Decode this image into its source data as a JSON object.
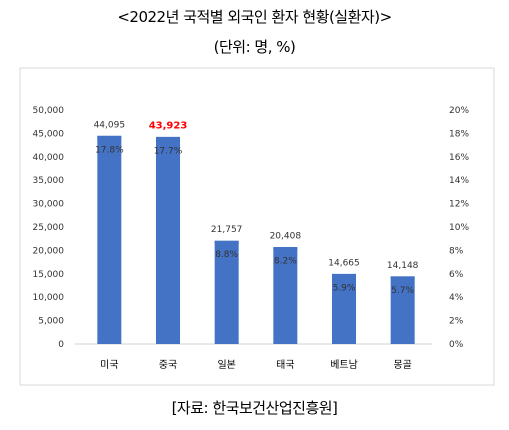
{
  "title": "<2022년 국적별 외국인 환자 현황(실환자)>",
  "unit": "(단위: 명, %)",
  "source": "[자료: 한국보건산업진흥원]",
  "chart_data": {
    "type": "bar",
    "categories": [
      "미국",
      "중국",
      "일본",
      "태국",
      "베트남",
      "몽골"
    ],
    "series": [
      {
        "values": [
          44095,
          43923,
          21757,
          20408,
          14665,
          14148
        ],
        "value_labels": [
          "44,095",
          "43,923",
          "21,757",
          "20,408",
          "14,665",
          "14,148"
        ],
        "axis": "left",
        "render": "marker"
      },
      {
        "values": [
          17.8,
          17.7,
          8.8,
          8.2,
          5.9,
          5.7
        ],
        "value_labels": [
          "17.8%",
          "17.7%",
          "8.8%",
          "8.2%",
          "5.9%",
          "5.7%"
        ],
        "axis": "right",
        "render": "bar"
      }
    ],
    "highlight_index": 1,
    "highlight_color": "#ff0000",
    "bar_color": "#4472c4",
    "left_axis": {
      "ylim": [
        0,
        50000
      ],
      "ticks": [
        "0",
        "5,000",
        "10,000",
        "15,000",
        "20,000",
        "25,000",
        "30,000",
        "35,000",
        "40,000",
        "45,000",
        "50,000"
      ]
    },
    "right_axis": {
      "ylim": [
        0,
        20
      ],
      "ticks": [
        "0%",
        "2%",
        "4%",
        "6%",
        "8%",
        "10%",
        "12%",
        "14%",
        "16%",
        "18%",
        "20%"
      ]
    },
    "grid": false,
    "legend": "none"
  }
}
